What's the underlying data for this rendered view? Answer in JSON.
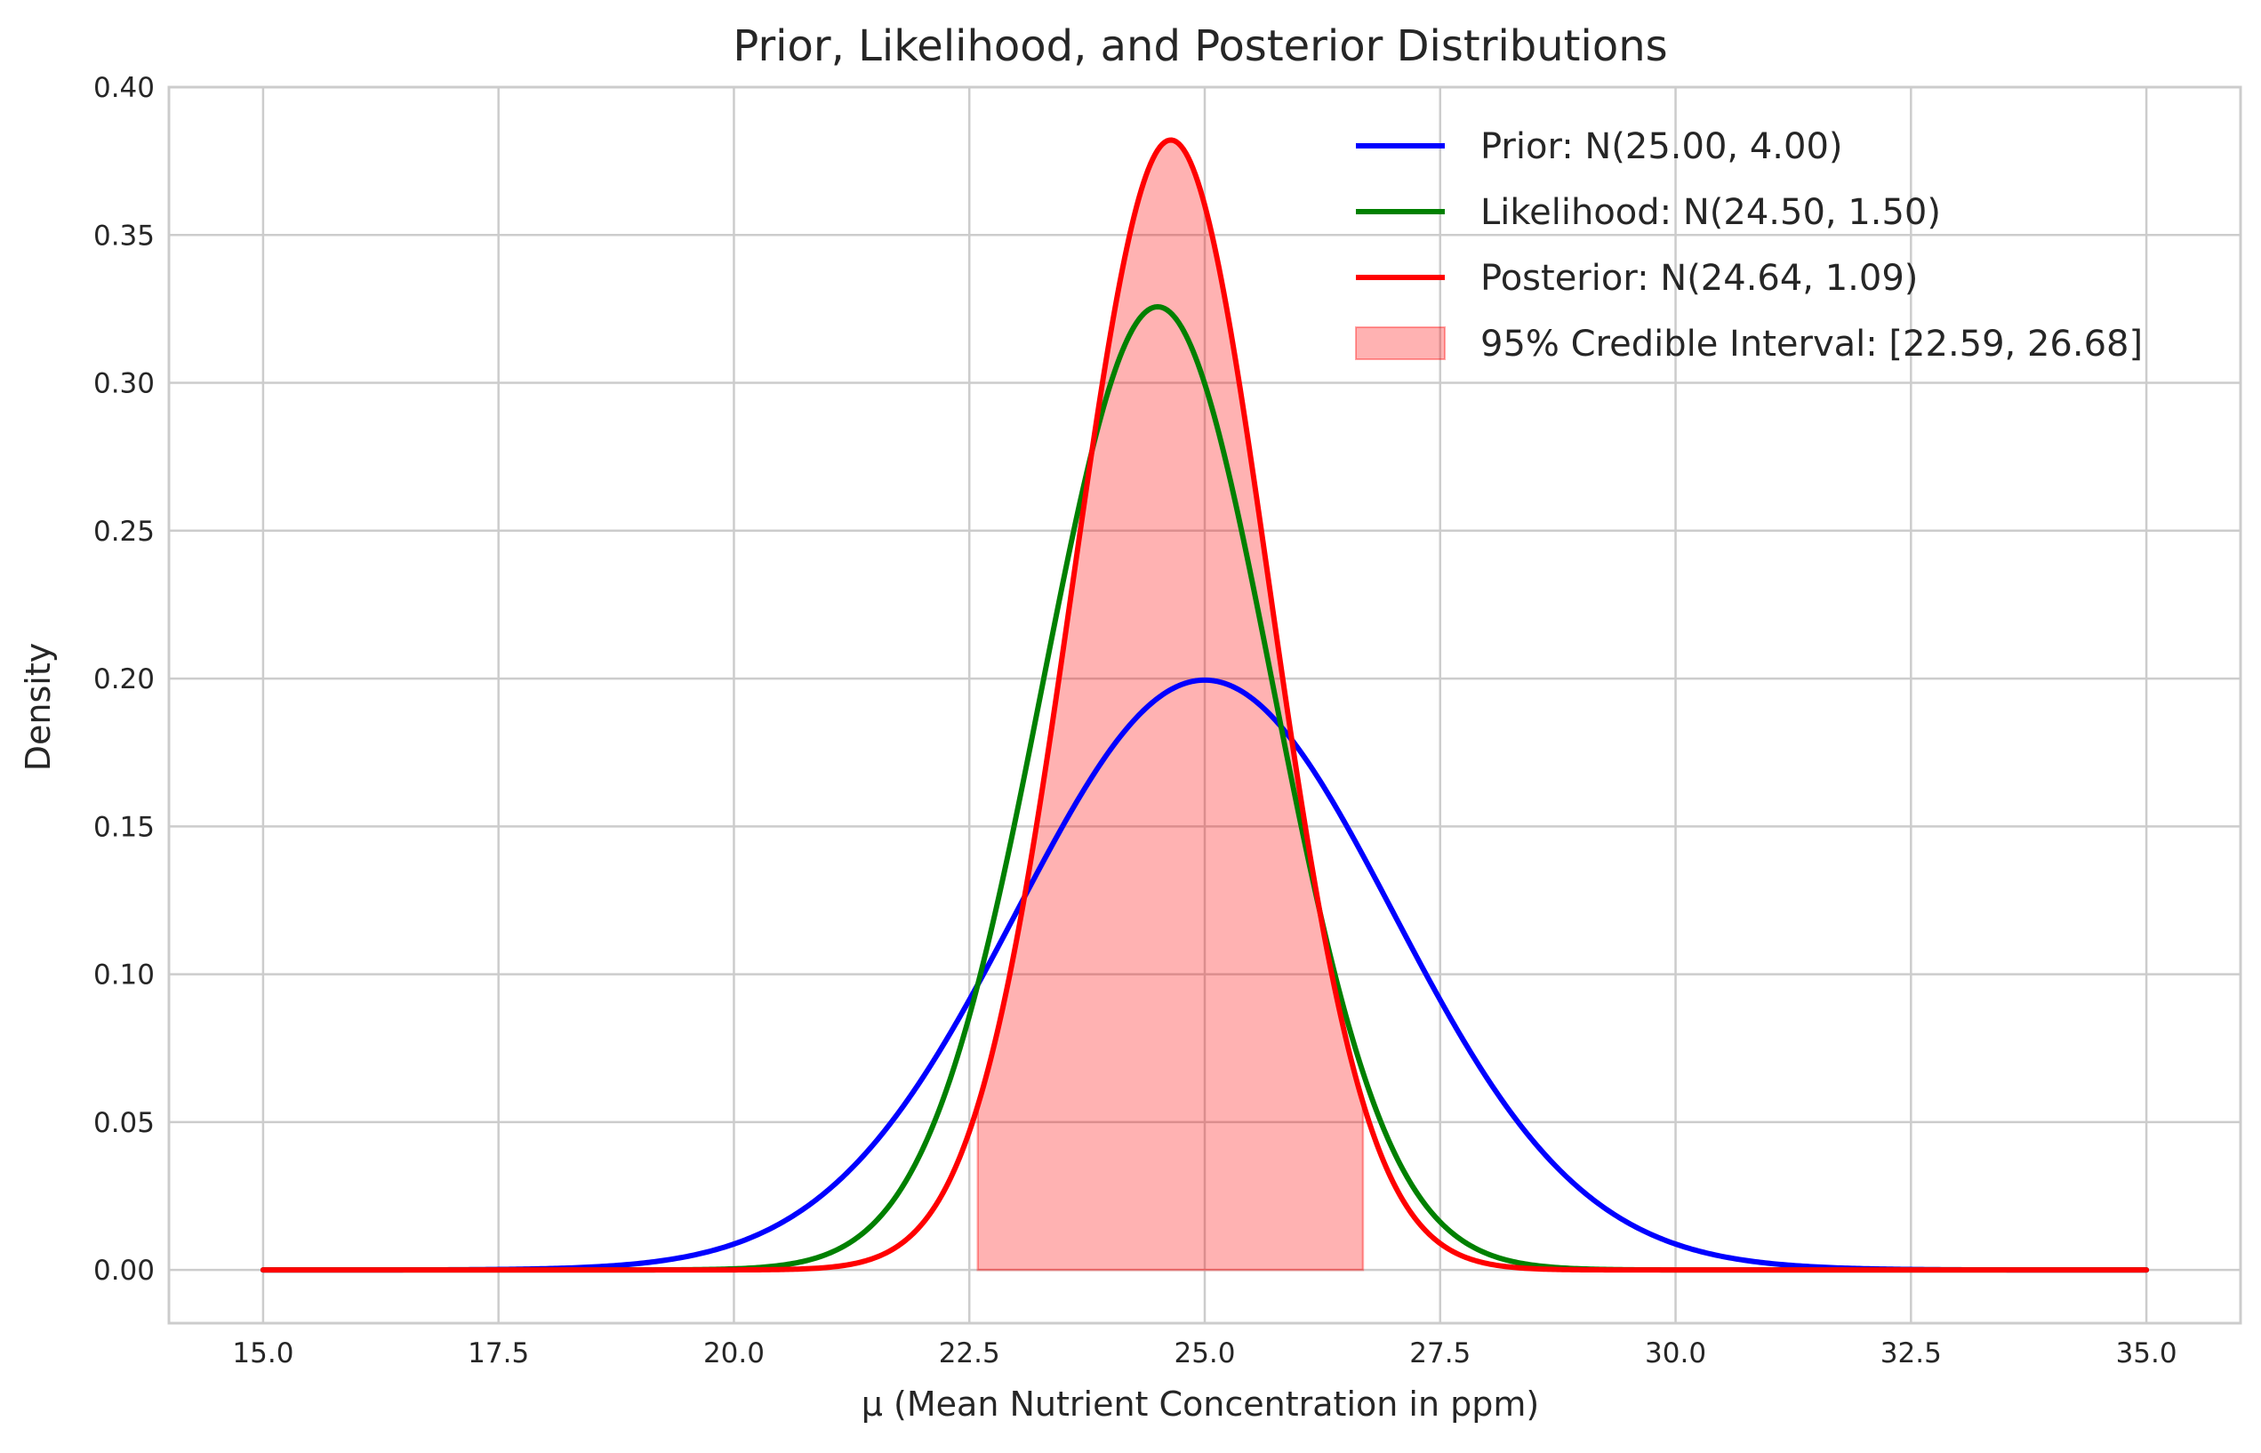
{
  "chart_data": {
    "type": "line",
    "title": "Prior, Likelihood, and Posterior Distributions",
    "xlabel": "μ (Mean Nutrient Concentration in ppm)",
    "ylabel": "Density",
    "xlim": [
      14.0,
      36.0
    ],
    "ylim": [
      -0.018,
      0.4
    ],
    "x_range": [
      15.0,
      35.0
    ],
    "xticks": [
      15.0,
      17.5,
      20.0,
      22.5,
      25.0,
      27.5,
      30.0,
      32.5,
      35.0
    ],
    "xtick_labels": [
      "15.0",
      "17.5",
      "20.0",
      "22.5",
      "25.0",
      "27.5",
      "30.0",
      "32.5",
      "35.0"
    ],
    "yticks": [
      0.0,
      0.05,
      0.1,
      0.15,
      0.2,
      0.25,
      0.3,
      0.35,
      0.4
    ],
    "ytick_labels": [
      "0.00",
      "0.05",
      "0.10",
      "0.15",
      "0.20",
      "0.25",
      "0.30",
      "0.35",
      "0.40"
    ],
    "grid": true,
    "legend_position": "top-right",
    "series": [
      {
        "name": "Prior: N(25.00, 4.00)",
        "mean": 25.0,
        "variance": 4.0,
        "color": "#0000ff",
        "kind": "line"
      },
      {
        "name": "Likelihood: N(24.50, 1.50)",
        "mean": 24.5,
        "variance": 1.5,
        "color": "#008000",
        "kind": "line"
      },
      {
        "name": "Posterior: N(24.64, 1.09)",
        "mean": 24.64,
        "variance": 1.09,
        "color": "#ff0000",
        "kind": "line"
      }
    ],
    "credible_interval": {
      "name": "95% Credible Interval: [22.59, 26.68]",
      "lower": 22.59,
      "upper": 26.68,
      "color": "#ff0000",
      "opacity": 0.3
    }
  }
}
